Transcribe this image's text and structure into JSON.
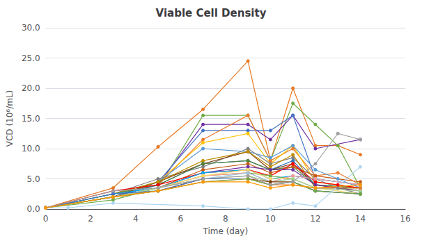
{
  "chart_data": {
    "type": "line",
    "title": "Viable Cell Density",
    "xlabel": "Time (day)",
    "ylabel": "VCD (10⁶/mL)",
    "xlim": [
      0,
      16
    ],
    "ylim": [
      0,
      30
    ],
    "xticks": [
      0,
      2,
      4,
      6,
      8,
      10,
      12,
      14,
      16
    ],
    "yticks": [
      {
        "value": 0,
        "label": "0.0"
      },
      {
        "value": 5,
        "label": "5.0"
      },
      {
        "value": 10,
        "label": "10.0"
      },
      {
        "value": 15,
        "label": "15.0"
      },
      {
        "value": 20,
        "label": "20.0"
      },
      {
        "value": 25,
        "label": "25.0"
      },
      {
        "value": 30,
        "label": "30.0"
      }
    ],
    "grid": true,
    "marker": "circle",
    "series": [
      {
        "x": [
          0,
          3,
          5,
          7,
          9,
          10,
          11,
          12,
          13,
          14
        ],
        "values": [
          0.2,
          3.5,
          10.3,
          16.5,
          24.5,
          8.0,
          20.0,
          10.5,
          10.5,
          9.0
        ],
        "color": "#E87722"
      },
      {
        "x": [
          0,
          3,
          5,
          7,
          9,
          10,
          11,
          12,
          13,
          14
        ],
        "values": [
          0.2,
          1.5,
          3.5,
          15.5,
          15.5,
          8.0,
          17.5,
          14.0,
          10.5,
          3.5
        ],
        "color": "#70AD47"
      },
      {
        "x": [
          0,
          3,
          5,
          7,
          9,
          10,
          11,
          12,
          14
        ],
        "values": [
          0.2,
          2.0,
          4.0,
          14.0,
          14.0,
          11.5,
          15.5,
          10.0,
          11.5
        ],
        "color": "#7030A0"
      },
      {
        "x": [
          0,
          3,
          5,
          7,
          9,
          10,
          11,
          12,
          14
        ],
        "values": [
          0.2,
          2.0,
          4.5,
          13.0,
          13.0,
          13.0,
          15.5,
          5.0,
          4.0
        ],
        "color": "#4472C4"
      },
      {
        "x": [
          0,
          3,
          5,
          7,
          9,
          10,
          11,
          12,
          13,
          14
        ],
        "values": [
          0.2,
          2.5,
          4.0,
          11.5,
          15.5,
          8.0,
          10.0,
          5.5,
          6.0,
          4.0
        ],
        "color": "#ED7D31"
      },
      {
        "x": [
          0,
          3,
          5,
          7,
          9,
          10,
          11,
          12,
          14
        ],
        "values": [
          0.2,
          2.5,
          4.5,
          11.0,
          12.5,
          7.5,
          10.5,
          4.5,
          3.5
        ],
        "color": "#FFC000"
      },
      {
        "x": [
          0,
          3,
          5,
          7,
          9,
          10,
          11,
          12,
          13,
          14
        ],
        "values": [
          0.2,
          2.5,
          4.5,
          10.0,
          9.5,
          8.5,
          10.5,
          6.5,
          5.0,
          3.5
        ],
        "color": "#5B9BD5"
      },
      {
        "x": [
          0,
          3,
          5,
          7,
          9,
          10,
          11,
          12,
          13,
          14
        ],
        "values": [
          0.2,
          2.5,
          5.0,
          7.0,
          10.0,
          7.5,
          8.5,
          5.0,
          3.5,
          2.5
        ],
        "color": "#808080"
      },
      {
        "x": [
          0,
          3,
          5,
          7,
          9,
          10,
          11,
          12,
          14
        ],
        "values": [
          0.2,
          2.0,
          4.5,
          7.5,
          9.5,
          6.5,
          7.5,
          4.0,
          3.0
        ],
        "color": "#843C0C"
      },
      {
        "x": [
          0,
          3,
          5,
          7,
          9,
          10,
          11,
          12,
          14
        ],
        "values": [
          0.2,
          2.5,
          4.5,
          8.0,
          9.5,
          7.0,
          9.0,
          3.5,
          3.5
        ],
        "color": "#BF8F00"
      },
      {
        "x": [
          0,
          3,
          5,
          7,
          9,
          10,
          11,
          12,
          14
        ],
        "values": [
          0.2,
          2.0,
          4.0,
          7.5,
          8.0,
          6.5,
          8.0,
          4.0,
          3.5
        ],
        "color": "#2E75B6"
      },
      {
        "x": [
          0,
          3,
          5,
          7,
          9,
          10,
          11,
          12,
          14
        ],
        "values": [
          0.2,
          2.5,
          4.0,
          7.5,
          8.0,
          6.5,
          7.0,
          4.0,
          3.5
        ],
        "color": "#548235"
      },
      {
        "x": [
          0,
          3,
          5,
          7,
          9,
          10,
          11,
          12,
          14
        ],
        "values": [
          0.2,
          2.0,
          3.5,
          6.5,
          7.5,
          6.0,
          7.0,
          5.5,
          4.5
        ],
        "color": "#C55A11"
      },
      {
        "x": [
          0,
          3,
          5,
          7,
          9,
          10,
          11,
          12,
          13,
          14
        ],
        "values": [
          0.2,
          3.0,
          4.0,
          6.0,
          6.5,
          5.5,
          7.5,
          4.5,
          4.0,
          3.5
        ],
        "color": "#FF0000"
      },
      {
        "x": [
          0,
          3,
          5,
          7,
          9,
          10,
          11,
          12,
          14
        ],
        "values": [
          0.2,
          2.0,
          3.5,
          6.0,
          7.0,
          6.5,
          6.5,
          4.0,
          3.0
        ],
        "color": "#7030A0"
      },
      {
        "x": [
          0,
          3,
          5,
          7,
          9,
          10,
          11,
          12,
          14
        ],
        "values": [
          0.2,
          2.5,
          3.5,
          6.0,
          6.5,
          5.0,
          5.5,
          5.0,
          4.0
        ],
        "color": "#00B0F0"
      },
      {
        "x": [
          0,
          3,
          5,
          7,
          9,
          10,
          11,
          12,
          14
        ],
        "values": [
          0.2,
          2.0,
          3.5,
          5.5,
          6.0,
          5.5,
          5.0,
          3.5,
          3.5
        ],
        "color": "#70AD47"
      },
      {
        "x": [
          0,
          3,
          5,
          7,
          9,
          10,
          11,
          12,
          14
        ],
        "values": [
          0.2,
          2.0,
          3.5,
          5.5,
          6.0,
          4.5,
          5.5,
          5.0,
          4.0
        ],
        "color": "#FF9999"
      },
      {
        "x": [
          0,
          3,
          5,
          7,
          9,
          10,
          11,
          12,
          14
        ],
        "values": [
          0.2,
          2.0,
          3.5,
          5.5,
          6.5,
          5.0,
          5.0,
          3.5,
          2.5
        ],
        "color": "#FFD966"
      },
      {
        "x": [
          0,
          3,
          5,
          7,
          9,
          10,
          11,
          12,
          14
        ],
        "values": [
          0.2,
          2.0,
          3.5,
          5.0,
          6.0,
          4.5,
          5.0,
          3.5,
          3.0
        ],
        "color": "#9DC3E6"
      },
      {
        "x": [
          0,
          3,
          5,
          7,
          9,
          10,
          11,
          12,
          14
        ],
        "values": [
          0.2,
          2.0,
          3.5,
          5.0,
          5.5,
          4.5,
          5.0,
          3.5,
          3.0
        ],
        "color": "#A9D18E"
      },
      {
        "x": [
          0,
          3,
          5,
          7,
          9,
          10,
          11,
          12,
          14
        ],
        "values": [
          0.2,
          2.0,
          3.0,
          5.0,
          5.0,
          4.5,
          4.5,
          3.0,
          2.5
        ],
        "color": "#843C0C"
      },
      {
        "x": [
          0,
          3,
          5,
          7,
          9,
          10,
          11,
          12,
          14
        ],
        "values": [
          0.2,
          2.5,
          3.0,
          5.0,
          5.0,
          4.0,
          4.5,
          3.0,
          2.5
        ],
        "color": "#4472C4"
      },
      {
        "x": [
          0,
          3,
          5,
          7,
          9,
          10,
          11,
          12,
          14
        ],
        "values": [
          0.2,
          2.0,
          3.0,
          4.5,
          5.0,
          4.0,
          4.0,
          3.5,
          3.5
        ],
        "color": "#ED7D31"
      },
      {
        "x": [
          0,
          3,
          5,
          7,
          9,
          10,
          11,
          12,
          14
        ],
        "values": [
          0.2,
          2.0,
          3.0,
          4.5,
          5.0,
          4.0,
          4.5,
          3.0,
          2.5
        ],
        "color": "#70AD47"
      },
      {
        "x": [
          0,
          1,
          3,
          7,
          9,
          10,
          11,
          12,
          14
        ],
        "values": [
          0.2,
          0.2,
          1.0,
          0.5,
          0.0,
          0.0,
          1.0,
          0.5,
          7.0
        ],
        "color": "#AED6F1"
      },
      {
        "x": [
          0,
          3,
          5,
          7,
          9,
          10,
          11,
          12,
          13,
          14
        ],
        "values": [
          0.2,
          3.0,
          3.5,
          5.0,
          5.5,
          4.0,
          4.5,
          7.5,
          12.5,
          11.5
        ],
        "color": "#A0A0A0"
      },
      {
        "x": [
          0,
          3,
          5,
          7,
          9,
          10,
          11,
          12,
          14
        ],
        "values": [
          0.2,
          2.0,
          3.0,
          4.5,
          4.5,
          3.5,
          4.0,
          3.5,
          4.0
        ],
        "color": "#FF9900"
      }
    ]
  }
}
